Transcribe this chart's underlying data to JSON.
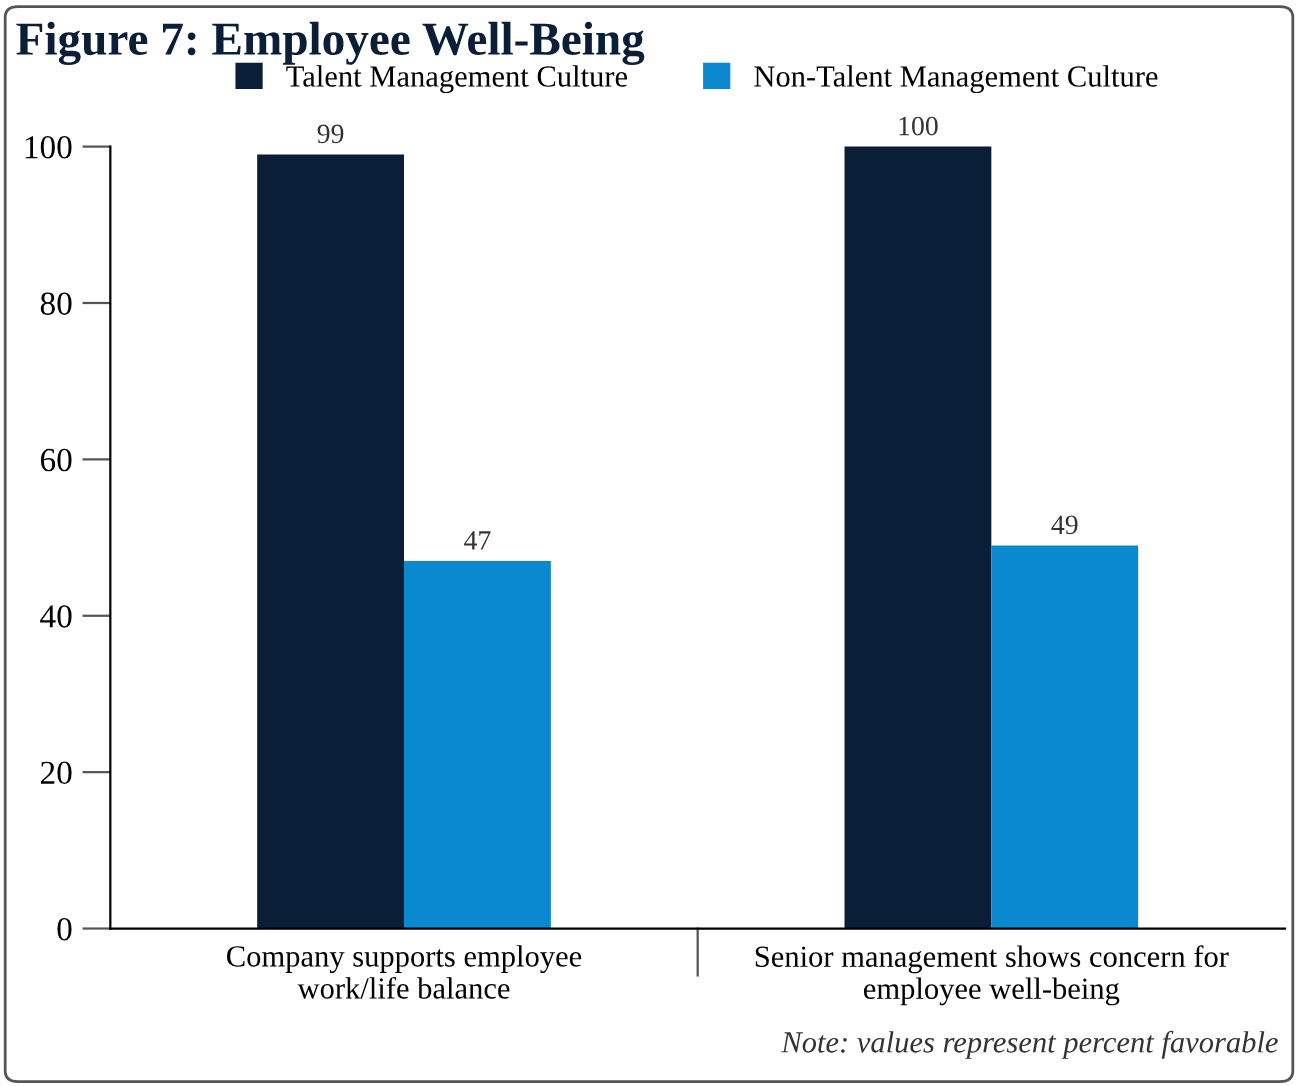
{
  "chart_data": {
    "type": "bar",
    "title": "Figure 7: Employee Well-Being",
    "categories": [
      "Company supports employee\nwork/life balance",
      "Senior management shows concern for\nemployee well-being"
    ],
    "series": [
      {
        "name": "Talent Management Culture",
        "color": "#0b1e38",
        "values": [
          99,
          100
        ]
      },
      {
        "name": "Non-Talent Management Culture",
        "color": "#0a88d0",
        "values": [
          47,
          49
        ]
      }
    ],
    "ylim": [
      0,
      100
    ],
    "yticks": [
      0,
      20,
      40,
      60,
      80,
      100
    ],
    "grid": false,
    "legend": "top",
    "data_labels": true,
    "annotations": [
      "Note: values represent percent favorable"
    ]
  }
}
